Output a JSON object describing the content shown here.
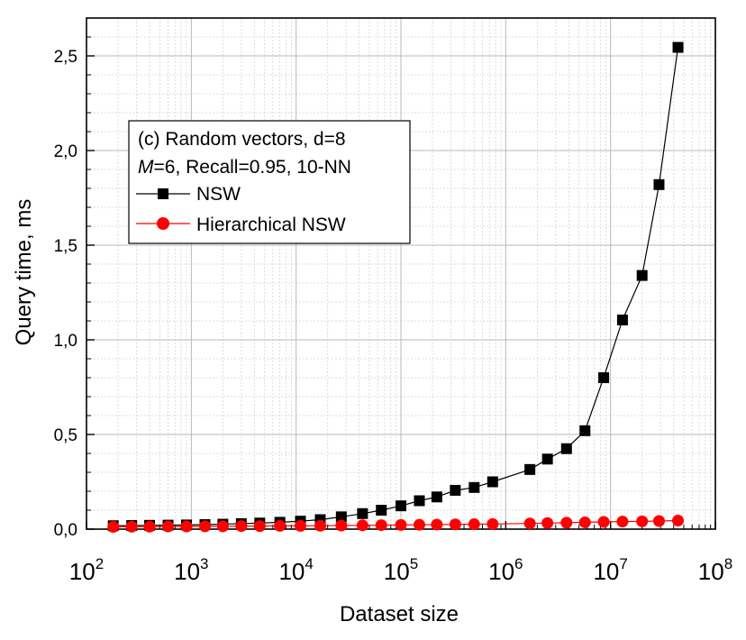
{
  "chart_data": {
    "type": "line",
    "xlabel": "Dataset size",
    "ylabel": "Query time, ms",
    "xscale": "log",
    "xlim": [
      100,
      100000000
    ],
    "ylim": [
      0,
      2.7
    ],
    "x_ticks": [
      {
        "value": 100,
        "base": "10",
        "exp": "2"
      },
      {
        "value": 1000,
        "base": "10",
        "exp": "3"
      },
      {
        "value": 10000,
        "base": "10",
        "exp": "4"
      },
      {
        "value": 100000,
        "base": "10",
        "exp": "5"
      },
      {
        "value": 1000000,
        "base": "10",
        "exp": "6"
      },
      {
        "value": 10000000,
        "base": "10",
        "exp": "7"
      },
      {
        "value": 100000000,
        "base": "10",
        "exp": "8"
      }
    ],
    "y_ticks": [
      {
        "value": 0.0,
        "label": "0,0"
      },
      {
        "value": 0.5,
        "label": "0,5"
      },
      {
        "value": 1.0,
        "label": "1,0"
      },
      {
        "value": 1.5,
        "label": "1,5"
      },
      {
        "value": 2.0,
        "label": "2,0"
      },
      {
        "value": 2.5,
        "label": "2,5"
      }
    ],
    "grid": true,
    "legend": {
      "position": "upper-left",
      "title_line1": "(c) Random vectors, d=8",
      "title_line2_italic": "M",
      "title_line2_rest": "=6, Recall=0.95, 10-NN"
    },
    "series": [
      {
        "name": "NSW",
        "color": "#000000",
        "marker": "square",
        "points": [
          [
            180,
            0.018
          ],
          [
            270,
            0.019
          ],
          [
            400,
            0.02
          ],
          [
            600,
            0.021
          ],
          [
            900,
            0.022
          ],
          [
            1350,
            0.024
          ],
          [
            2000,
            0.026
          ],
          [
            3000,
            0.029
          ],
          [
            4500,
            0.032
          ],
          [
            7000,
            0.036
          ],
          [
            11000,
            0.042
          ],
          [
            17000,
            0.05
          ],
          [
            27000,
            0.065
          ],
          [
            43000,
            0.082
          ],
          [
            65000,
            0.1
          ],
          [
            100000,
            0.123
          ],
          [
            150000,
            0.15
          ],
          [
            220000,
            0.17
          ],
          [
            330000,
            0.205
          ],
          [
            500000,
            0.22
          ],
          [
            750000,
            0.25
          ],
          [
            1700000,
            0.315
          ],
          [
            2500000,
            0.37
          ],
          [
            3800000,
            0.425
          ],
          [
            5700000,
            0.52
          ],
          [
            8600000,
            0.8
          ],
          [
            13000000,
            1.105
          ],
          [
            20000000,
            1.34
          ],
          [
            29000000,
            1.82
          ],
          [
            44000000,
            2.545
          ]
        ]
      },
      {
        "name": "Hierarchical NSW",
        "color": "#ff0000",
        "marker": "circle",
        "points": [
          [
            180,
            0.012
          ],
          [
            270,
            0.013
          ],
          [
            400,
            0.013
          ],
          [
            600,
            0.014
          ],
          [
            900,
            0.014
          ],
          [
            1350,
            0.015
          ],
          [
            2000,
            0.015
          ],
          [
            3000,
            0.016
          ],
          [
            4500,
            0.016
          ],
          [
            7000,
            0.017
          ],
          [
            11000,
            0.017
          ],
          [
            17000,
            0.018
          ],
          [
            27000,
            0.019
          ],
          [
            43000,
            0.02
          ],
          [
            65000,
            0.021
          ],
          [
            100000,
            0.022
          ],
          [
            150000,
            0.023
          ],
          [
            220000,
            0.024
          ],
          [
            330000,
            0.025
          ],
          [
            500000,
            0.026
          ],
          [
            750000,
            0.027
          ],
          [
            1700000,
            0.03
          ],
          [
            2500000,
            0.032
          ],
          [
            3800000,
            0.034
          ],
          [
            5700000,
            0.036
          ],
          [
            8600000,
            0.038
          ],
          [
            13000000,
            0.04
          ],
          [
            20000000,
            0.041
          ],
          [
            29000000,
            0.043
          ],
          [
            44000000,
            0.045
          ]
        ]
      }
    ]
  }
}
